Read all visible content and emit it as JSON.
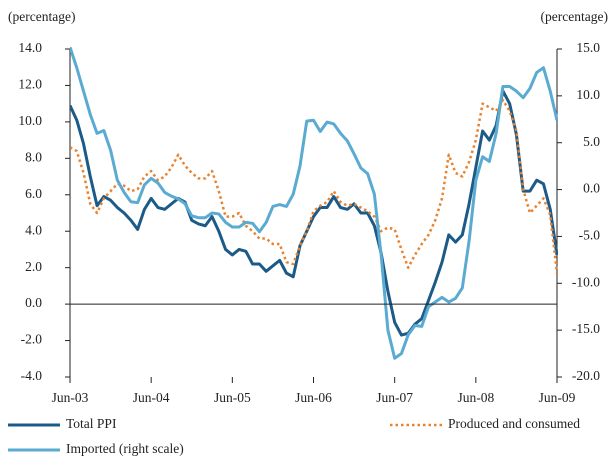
{
  "chart_data": {
    "type": "line",
    "y_label": "(percentage)",
    "y2_label": "(percentage)",
    "categories": [
      "Jun-03",
      null,
      null,
      null,
      null,
      null,
      null,
      null,
      null,
      null,
      null,
      null,
      "Jun-04",
      null,
      null,
      null,
      null,
      null,
      null,
      null,
      null,
      null,
      null,
      null,
      "Jun-05",
      null,
      null,
      null,
      null,
      null,
      null,
      null,
      null,
      null,
      null,
      null,
      "Jun-06",
      null,
      null,
      null,
      null,
      null,
      null,
      null,
      null,
      null,
      null,
      null,
      "Jun-07",
      null,
      null,
      null,
      null,
      null,
      null,
      null,
      null,
      null,
      null,
      null,
      "Jun-08",
      null,
      null,
      null,
      null,
      null,
      null,
      null,
      null,
      null,
      null,
      null,
      "Jun-09"
    ],
    "ylim": [
      -4,
      14
    ],
    "yticks": [
      {
        "value": -4,
        "label": "-4.0"
      },
      {
        "value": -2,
        "label": "-2.0"
      },
      {
        "value": 0,
        "label": "0.0"
      },
      {
        "value": 2,
        "label": "2.0"
      },
      {
        "value": 4,
        "label": "4.0"
      },
      {
        "value": 6,
        "label": "6.0"
      },
      {
        "value": 8,
        "label": "8.0"
      },
      {
        "value": 10,
        "label": "10.0"
      },
      {
        "value": 12,
        "label": "12.0"
      },
      {
        "value": 14,
        "label": "14.0"
      }
    ],
    "y2lim": [
      -20,
      15
    ],
    "y2ticks": [
      {
        "value": -20,
        "label": "-20.0"
      },
      {
        "value": -15,
        "label": "-15.0"
      },
      {
        "value": -10,
        "label": "-10.0"
      },
      {
        "value": -5,
        "label": "-5.0"
      },
      {
        "value": 0,
        "label": "0.0"
      },
      {
        "value": 5,
        "label": "5.0"
      },
      {
        "value": 10,
        "label": "10.0"
      },
      {
        "value": 15,
        "label": "15.0"
      }
    ],
    "series": [
      {
        "name": "Total PPI",
        "color": "#1c5a88",
        "style": "solid",
        "axis": "y",
        "values": [
          10.9,
          10.1,
          8.8,
          7.0,
          5.4,
          5.9,
          5.7,
          5.3,
          5.0,
          4.6,
          4.1,
          5.2,
          5.8,
          5.3,
          5.2,
          5.5,
          5.8,
          5.6,
          4.6,
          4.4,
          4.3,
          4.8,
          4.0,
          3.0,
          2.7,
          3.0,
          2.9,
          2.2,
          2.2,
          1.8,
          2.1,
          2.4,
          1.7,
          1.5,
          3.2,
          4.0,
          4.8,
          5.3,
          5.3,
          5.9,
          5.3,
          5.2,
          5.5,
          5.0,
          5.0,
          4.3,
          2.8,
          0.7,
          -1.0,
          -1.7,
          -1.6,
          -1.1,
          -0.8,
          0.2,
          1.2,
          2.3,
          3.8,
          3.4,
          3.8,
          5.5,
          7.5,
          9.5,
          9.0,
          9.8,
          11.7,
          11.0,
          9.3,
          6.2,
          6.2,
          6.8,
          6.6,
          5.2,
          2.7
        ]
      },
      {
        "name": "Produced and consumed",
        "color": "#e8822e",
        "style": "dotted",
        "axis": "y",
        "values": [
          8.6,
          8.4,
          7.2,
          5.5,
          5.0,
          5.8,
          6.2,
          6.6,
          6.5,
          6.2,
          6.3,
          7.0,
          7.3,
          6.8,
          7.0,
          7.5,
          8.2,
          7.6,
          7.2,
          6.9,
          6.9,
          7.3,
          6.2,
          4.8,
          4.8,
          5.0,
          4.3,
          4.0,
          3.6,
          3.6,
          3.3,
          3.3,
          2.3,
          2.2,
          3.2,
          4.0,
          5.1,
          5.4,
          5.6,
          6.2,
          5.6,
          5.4,
          5.5,
          5.3,
          5.1,
          4.8,
          4.0,
          4.2,
          4.1,
          3.0,
          2.0,
          2.7,
          3.3,
          3.8,
          4.6,
          5.8,
          8.2,
          7.2,
          7.0,
          7.8,
          9.0,
          11.0,
          10.8,
          10.6,
          11.2,
          10.6,
          9.5,
          6.3,
          5.0,
          5.4,
          5.8,
          4.9,
          1.7
        ]
      },
      {
        "name": "Imported (right scale)",
        "color": "#5aaad2",
        "style": "solid",
        "axis": "y2",
        "values": [
          15.2,
          13.0,
          10.5,
          8.0,
          6.0,
          6.3,
          4.2,
          1.0,
          -0.3,
          -1.3,
          -1.4,
          0.5,
          1.2,
          0.7,
          -0.3,
          -0.7,
          -1.0,
          -1.5,
          -2.8,
          -3.0,
          -3.0,
          -2.5,
          -2.6,
          -3.5,
          -4.0,
          -4.0,
          -3.5,
          -3.6,
          -4.5,
          -3.5,
          -1.8,
          -1.6,
          -1.8,
          -0.5,
          2.5,
          7.3,
          7.4,
          6.2,
          7.2,
          7.0,
          6.0,
          5.2,
          3.8,
          2.3,
          1.7,
          -0.5,
          -7.0,
          -15.0,
          -18.0,
          -17.5,
          -15.5,
          -14.5,
          -14.6,
          -12.5,
          -12.0,
          -11.5,
          -12.0,
          -11.6,
          -10.5,
          -5.5,
          1.0,
          3.5,
          3.0,
          6.0,
          11.0,
          11.0,
          10.5,
          9.8,
          10.8,
          12.5,
          13.0,
          10.5,
          7.4
        ]
      }
    ]
  }
}
